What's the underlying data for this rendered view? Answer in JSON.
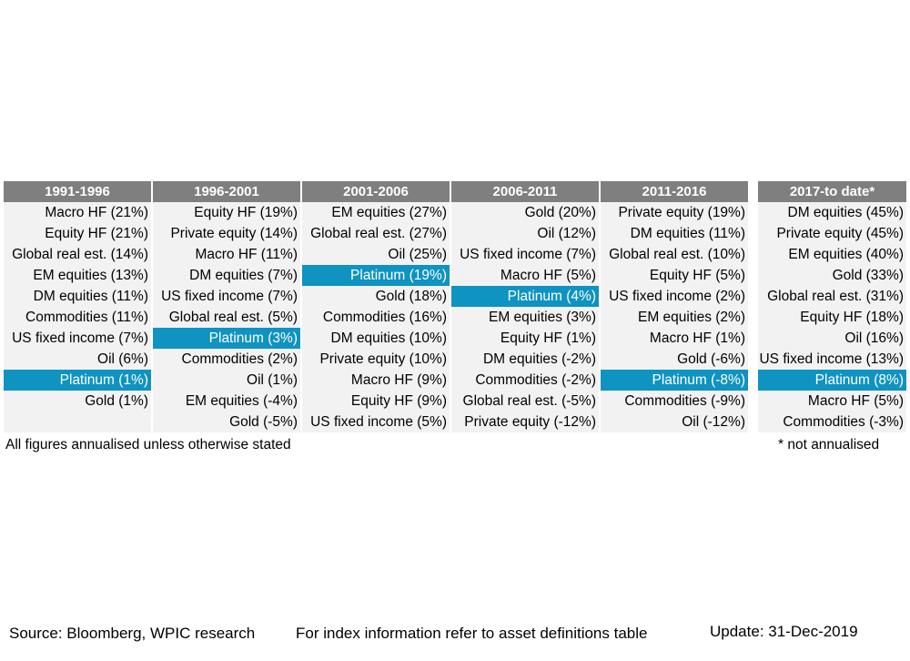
{
  "columns": [
    {
      "header": "1991-1996",
      "cells": [
        {
          "text": "Macro HF (21%)"
        },
        {
          "text": "Equity HF (21%)"
        },
        {
          "text": "Global real est. (14%)"
        },
        {
          "text": "EM equities (13%)"
        },
        {
          "text": "DM equities (11%)"
        },
        {
          "text": "Commodities (11%)"
        },
        {
          "text": "US fixed income (7%)"
        },
        {
          "text": "Oil (6%)"
        },
        {
          "text": "Platinum (1%)",
          "highlight": true
        },
        {
          "text": "Gold (1%)"
        },
        {
          "text": ""
        }
      ]
    },
    {
      "header": "1996-2001",
      "cells": [
        {
          "text": "Equity HF (19%)"
        },
        {
          "text": "Private equity (14%)"
        },
        {
          "text": "Macro HF (11%)"
        },
        {
          "text": "DM equities (7%)"
        },
        {
          "text": "US fixed income (7%)"
        },
        {
          "text": "Global real est. (5%)"
        },
        {
          "text": "Platinum (3%)",
          "highlight": true
        },
        {
          "text": "Commodities (2%)"
        },
        {
          "text": "Oil (1%)"
        },
        {
          "text": "EM equities (-4%)"
        },
        {
          "text": "Gold (-5%)"
        }
      ]
    },
    {
      "header": "2001-2006",
      "cells": [
        {
          "text": "EM equities (27%)"
        },
        {
          "text": "Global real est. (27%)"
        },
        {
          "text": "Oil (25%)"
        },
        {
          "text": "Platinum (19%)",
          "highlight": true
        },
        {
          "text": "Gold (18%)"
        },
        {
          "text": "Commodities (16%)"
        },
        {
          "text": "DM equities (10%)"
        },
        {
          "text": "Private equity (10%)"
        },
        {
          "text": "Macro HF (9%)"
        },
        {
          "text": "Equity HF (9%)"
        },
        {
          "text": "US fixed income (5%)"
        }
      ]
    },
    {
      "header": "2006-2011",
      "cells": [
        {
          "text": "Gold (20%)"
        },
        {
          "text": "Oil (12%)"
        },
        {
          "text": "US fixed income (7%)"
        },
        {
          "text": "Macro HF (5%)"
        },
        {
          "text": "Platinum (4%)",
          "highlight": true
        },
        {
          "text": "EM equities (3%)"
        },
        {
          "text": "Equity HF (1%)"
        },
        {
          "text": "DM equities (-2%)"
        },
        {
          "text": "Commodities (-2%)"
        },
        {
          "text": "Global real est. (-5%)"
        },
        {
          "text": "Private equity (-12%)"
        }
      ]
    },
    {
      "header": "2011-2016",
      "cells": [
        {
          "text": "Private equity (19%)"
        },
        {
          "text": "DM equities (11%)"
        },
        {
          "text": "Global real est. (10%)"
        },
        {
          "text": "Equity HF (5%)"
        },
        {
          "text": "US fixed income (2%)"
        },
        {
          "text": "EM equities (2%)"
        },
        {
          "text": "Macro HF (1%)"
        },
        {
          "text": "Gold (-6%)"
        },
        {
          "text": "Platinum (-8%)",
          "highlight": true
        },
        {
          "text": "Commodities (-9%)"
        },
        {
          "text": "Oil (-12%)"
        }
      ]
    },
    {
      "header": "2017-to date*",
      "cells": [
        {
          "text": "DM equities (45%)"
        },
        {
          "text": "Private equity (45%)"
        },
        {
          "text": "EM equities (40%)"
        },
        {
          "text": "Gold (33%)"
        },
        {
          "text": "Global real est. (31%)"
        },
        {
          "text": "Equity HF (18%)"
        },
        {
          "text": "Oil (16%)"
        },
        {
          "text": "US fixed income (13%)"
        },
        {
          "text": "Platinum (8%)",
          "highlight": true
        },
        {
          "text": "Macro HF (5%)"
        },
        {
          "text": "Commodities (-3%)"
        }
      ]
    }
  ],
  "notes": {
    "left": "All figures annualised unless otherwise stated",
    "right": "* not annualised"
  },
  "footer": {
    "source": "Source: Bloomberg, WPIC research",
    "index_info": "For index information refer to asset definitions table",
    "update": "Update: 31-Dec-2019"
  },
  "colors": {
    "header_bg": "#7f7f7f",
    "cell_bg": "#f2f2f2",
    "highlight_bg": "#0f93c0"
  }
}
